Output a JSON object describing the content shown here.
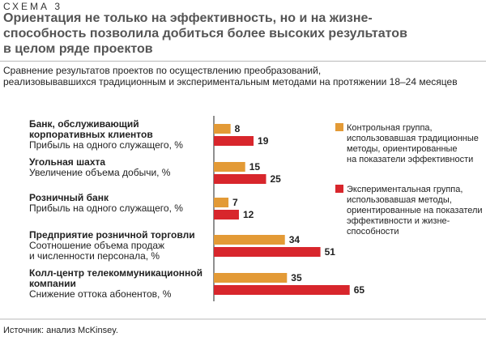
{
  "header": {
    "schema_label": "СХЕМА 3",
    "title_lines": [
      "Ориентация не только на эффективность, но и на жизне-",
      "способность позволила добиться более высоких результатов",
      "в целом ряде проектов"
    ],
    "subtitle_lines": [
      "Сравнение результатов проектов по осуществлению преобразований,",
      "реализовывавшихся традиционным и экспериментальным методами на протяжении 18–24 месяцев"
    ]
  },
  "source": "Источник: анализ McKinsey.",
  "chart_data": {
    "type": "bar",
    "orientation": "horizontal",
    "categories": [
      {
        "name_lines": [
          "Банк, обслуживающий",
          "корпоративных клиентов"
        ],
        "metric_lines": [
          "Прибыль на одного служащего, %"
        ]
      },
      {
        "name_lines": [
          "Угольная шахта"
        ],
        "metric_lines": [
          "Увеличение объема добычи, %"
        ]
      },
      {
        "name_lines": [
          "Розничный банк"
        ],
        "metric_lines": [
          "Прибыль на одного служащего, %"
        ]
      },
      {
        "name_lines": [
          "Предприятие розничной торговли"
        ],
        "metric_lines": [
          "Соотношение объема продаж",
          "и численности персонала, %"
        ]
      },
      {
        "name_lines": [
          "Колл-центр телекоммуникационной",
          "компании"
        ],
        "metric_lines": [
          "Снижение оттока абонентов, %"
        ]
      }
    ],
    "series": [
      {
        "name_lines": [
          "Контрольная группа,",
          "использовавшая традиционные",
          "методы, ориентированные",
          "на показатели эффективности"
        ],
        "values": [
          8,
          15,
          7,
          34,
          35
        ],
        "color": "#E39A36"
      },
      {
        "name_lines": [
          "Экспериментальная группа,",
          "использовавшая методы,",
          "ориентированные на показатели",
          "эффективности и жизне-",
          "способности"
        ],
        "values": [
          19,
          25,
          12,
          51,
          65
        ],
        "color": "#D8262C"
      }
    ],
    "legend_position": "right",
    "grid": false
  }
}
